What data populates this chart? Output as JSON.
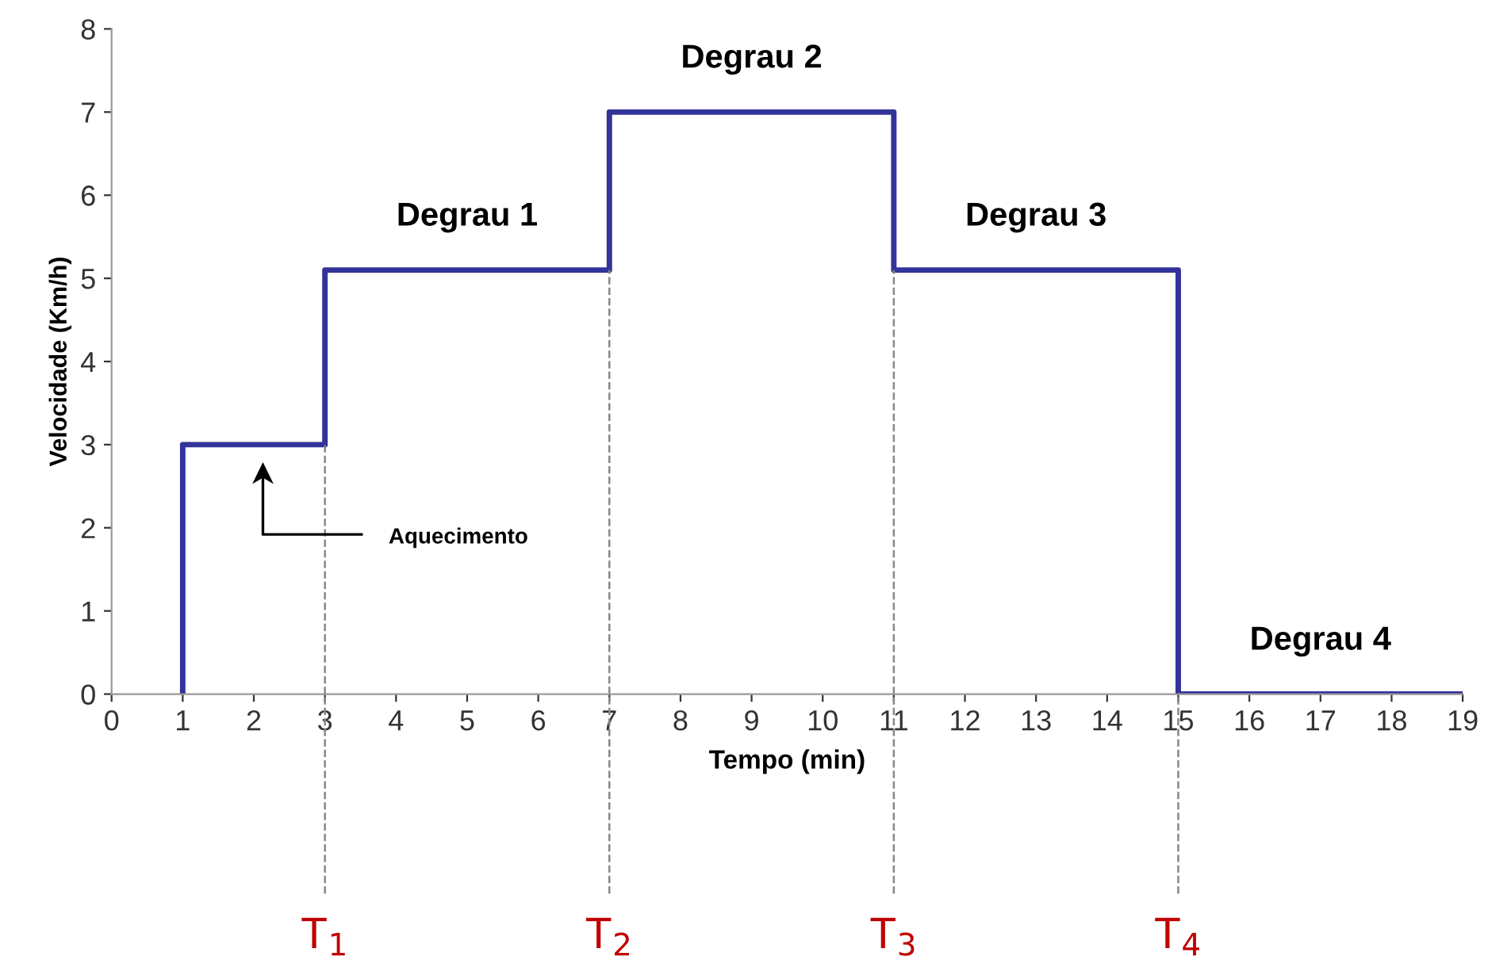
{
  "chart_data": {
    "type": "step",
    "xlabel": "Tempo (min)",
    "ylabel": "Velocidade (Km/h)",
    "x": [
      1,
      1,
      3,
      7,
      11,
      15,
      19
    ],
    "series": [
      {
        "color": "#33339a",
        "values": [
          0,
          3,
          5.1,
          7,
          5.1,
          0,
          0
        ]
      }
    ],
    "xlim": [
      0,
      19
    ],
    "xticks": [
      0,
      1,
      2,
      3,
      4,
      5,
      6,
      7,
      8,
      9,
      10,
      11,
      12,
      13,
      14,
      15,
      16,
      17,
      18,
      19
    ],
    "ylim": [
      0,
      8
    ],
    "yticks": [
      0,
      1,
      2,
      3,
      4,
      5,
      6,
      7,
      8
    ],
    "grid": false,
    "line_style": "solid",
    "marker": "none",
    "ref_lines": [
      {
        "axis": "x",
        "value": 3,
        "label": "T$_{1}$",
        "line_style": "dashed"
      },
      {
        "axis": "x",
        "value": 7,
        "label": "T$_{2}$",
        "line_style": "dashed"
      },
      {
        "axis": "x",
        "value": 11,
        "label": "T$_{3}$",
        "line_style": "dashed"
      },
      {
        "axis": "x",
        "value": 15,
        "label": "T$_{4}$",
        "line_style": "dashed"
      }
    ],
    "annotations": [
      {
        "text": "Degrau 1",
        "x": 5,
        "y": 5.1
      },
      {
        "text": "Degrau 2",
        "x": 9,
        "y": 7
      },
      {
        "text": "Degrau 3",
        "x": 13,
        "y": 5.1
      },
      {
        "text": "Degrau 4",
        "x": 17,
        "y": 0
      },
      "Aquecimento"
    ]
  }
}
